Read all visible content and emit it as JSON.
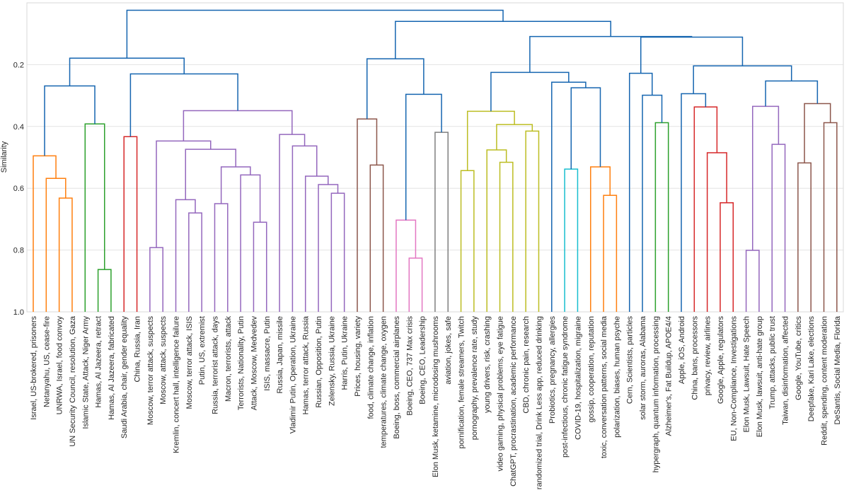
{
  "chart_data": {
    "type": "dendrogram",
    "ylabel": "Similarity",
    "ylim": [
      0,
      1.0
    ],
    "y_inverted": true,
    "yticks": [
      0.2,
      0.4,
      0.6,
      0.8,
      1.0
    ],
    "ytick_labels": [
      "0.2",
      "0.4",
      "0.6",
      "0.8",
      "1.0"
    ],
    "grid": "horizontal",
    "colors": {
      "above": "#1565b0",
      "orange": "#ff7f0e",
      "green": "#2ca02c",
      "red": "#d62728",
      "purple": "#9467bd",
      "brown": "#8c564b",
      "pink": "#e377c2",
      "gray": "#7f7f7f",
      "olive": "#bcbd22",
      "cyan": "#17becf"
    },
    "leaves": [
      "Israel, US-brokered, prisoners",
      "Netanyahu, US, cease-fire",
      "UNRWA, Israel, food convoy",
      "UN Security Council, resolution, Gaza",
      "Islamic State, Attack, Niger Army",
      "Hamas, Al Jazeera, retract",
      "Hamas, Al Jazeera, fabricated",
      "Saudi Arabia, chair, gender equality",
      "China, Russia, Iran",
      "Moscow, terror attack, suspects",
      "Moscow, attack, suspects",
      "Kremlin, concert hall, intelligence failure",
      "Moscow, terror attack, ISIS",
      "Putin, US, extremist",
      "Russia, terrorist attack, days",
      "Macron, terrorists, attack",
      "Terrorists, Nationality, Putin",
      "Attack, Moscow, Medvedev",
      "ISIS, massacre, Putin",
      "Russia, Japan, missile",
      "Vladimir Putin, Operation, Ukraine",
      "Hamas, terror attack, Russia",
      "Russian, Opposition, Putin",
      "Zelensky, Russia, Ukraine",
      "Harris, Putin, Ukraine",
      "Prices, housing, variety",
      "food, climate change, inflation",
      "temperatures, climate change, oxygen",
      "Boeing, boss, commercial airplanes",
      "Boeing, CEO, 737 Max crisis",
      "Boeing, CEO, Leadership",
      "Elon Musk, ketamine, microdosing mushrooms",
      "aviation, jokes, safe",
      "pornification, female streamers, Twitch",
      "pornography, prevalence rate, study",
      "young drivers, risk, crashing",
      "video gaming, physical problems, eye fatigue",
      "ChatGPT, procrastination, academic performance",
      "CBD, chronic pain, research",
      "randomized trial, Drink Less app, reduced drinking",
      "Probiotics, pregnancy, allergies",
      "post-infectious, chronic fatigue syndrome",
      "COVID-19, hospitalization, migraine",
      "gossip, cooperation, reputation",
      "toxic, conversation patterns, social media",
      "polarization, biases, human psyche",
      "Cern, Scientists, particles",
      "solar storm, auroras, Alabama",
      "hypergraph, quantum information, processing",
      "Alzheimer's, Fat Buildup, APOE4/4",
      "Apple, iOS, Android",
      "China, bans, processors",
      "privacy, review, airlines",
      "Google, Apple, regulators",
      "EU, Non-Compliance, Investigations",
      "Elon Musk, Lawsuit, Hate Speech",
      "Elon Musk, lawsuit, anti-hate group",
      "Trump, attacks, public trust",
      "Taiwan, disinformation, affected",
      "Google, YouTube, critics",
      "Deepfake, Kari Lake, elections",
      "Reddit, spending, content moderation",
      "DeSantis, Social Media, Florida"
    ],
    "tree": {
      "h": 0.024,
      "c": [
        {
          "h": 0.179,
          "c": [
            {
              "h": 0.269,
              "c": [
                {
                  "h": 0.495,
                  "k": "orange",
                  "c": [
                    0,
                    {
                      "h": 0.568,
                      "c": [
                        1,
                        {
                          "h": 0.632,
                          "c": [
                            2,
                            3
                          ]
                        }
                      ]
                    }
                  ]
                },
                {
                  "h": 0.392,
                  "k": "green",
                  "c": [
                    4,
                    {
                      "h": 0.863,
                      "c": [
                        5,
                        6
                      ]
                    }
                  ]
                }
              ]
            },
            {
              "h": 0.23,
              "c": [
                {
                  "h": 0.433,
                  "k": "red",
                  "c": [
                    7,
                    8
                  ]
                },
                {
                  "h": 0.349,
                  "k": "purple",
                  "c": [
                    {
                      "h": 0.447,
                      "c": [
                        {
                          "h": 0.792,
                          "c": [
                            9,
                            10
                          ]
                        },
                        {
                          "h": 0.474,
                          "c": [
                            {
                              "h": 0.637,
                              "c": [
                                11,
                                {
                                  "h": 0.68,
                                  "c": [
                                    12,
                                    13
                                  ]
                                }
                              ]
                            },
                            {
                              "h": 0.531,
                              "c": [
                                {
                                  "h": 0.65,
                                  "c": [
                                    14,
                                    15
                                  ]
                                },
                                {
                                  "h": 0.557,
                                  "c": [
                                    16,
                                    {
                                      "h": 0.71,
                                      "c": [
                                        17,
                                        18
                                      ]
                                    }
                                  ]
                                }
                              ]
                            }
                          ]
                        }
                      ]
                    },
                    {
                      "h": 0.426,
                      "c": [
                        19,
                        {
                          "h": 0.463,
                          "c": [
                            20,
                            {
                              "h": 0.561,
                              "c": [
                                21,
                                {
                                  "h": 0.588,
                                  "c": [
                                    22,
                                    {
                                      "h": 0.616,
                                      "c": [
                                        23,
                                        24
                                      ]
                                    }
                                  ]
                                }
                              ]
                            }
                          ]
                        }
                      ]
                    }
                  ]
                }
              ]
            }
          ]
        },
        {
          "h": 0.06,
          "c": [
            {
              "h": 0.181,
              "c": [
                {
                  "h": 0.376,
                  "k": "brown",
                  "c": [
                    25,
                    {
                      "h": 0.525,
                      "c": [
                        26,
                        27
                      ]
                    }
                  ]
                },
                {
                  "h": 0.296,
                  "c": [
                    {
                      "h": 0.703,
                      "k": "pink",
                      "c": [
                        28,
                        {
                          "h": 0.826,
                          "c": [
                            29,
                            30
                          ]
                        }
                      ]
                    },
                    {
                      "h": 0.419,
                      "k": "gray",
                      "c": [
                        31,
                        32
                      ]
                    }
                  ]
                }
              ]
            },
            {
              "h": 0.109,
              "c": [
                {
                  "h": 0.225,
                  "c": [
                    {
                      "h": 0.351,
                      "k": "olive",
                      "c": [
                        {
                          "h": 0.543,
                          "c": [
                            33,
                            34
                          ]
                        },
                        {
                          "h": 0.394,
                          "c": [
                            {
                              "h": 0.476,
                              "c": [
                                35,
                                {
                                  "h": 0.516,
                                  "c": [
                                    36,
                                    37
                                  ]
                                }
                              ]
                            },
                            {
                              "h": 0.415,
                              "c": [
                                38,
                                39
                              ]
                            }
                          ]
                        }
                      ]
                    },
                    {
                      "h": 0.257,
                      "c": [
                        40,
                        {
                          "h": 0.275,
                          "c": [
                            {
                              "h": 0.538,
                              "k": "cyan",
                              "c": [
                                41,
                                42
                              ]
                            },
                            {
                              "h": 0.531,
                              "k": "orange",
                              "c": [
                                43,
                                {
                                  "h": 0.623,
                                  "c": [
                                    44,
                                    45
                                  ]
                                }
                              ]
                            }
                          ]
                        }
                      ]
                    }
                  ]
                },
                {
                  "h": 0.111,
                  "c": [
                    {
                      "h": 0.228,
                      "c": [
                        46,
                        {
                          "h": 0.299,
                          "c": [
                            47,
                            {
                              "h": 0.388,
                              "k": "green",
                              "c": [
                                48,
                                49
                              ]
                            }
                          ]
                        }
                      ]
                    },
                    {
                      "h": 0.204,
                      "c": [
                        {
                          "h": 0.294,
                          "c": [
                            50,
                            {
                              "h": 0.337,
                              "k": "red",
                              "c": [
                                51,
                                {
                                  "h": 0.485,
                                  "c": [
                                    52,
                                    {
                                      "h": 0.647,
                                      "c": [
                                        53,
                                        54
                                      ]
                                    }
                                  ]
                                }
                              ]
                            }
                          ]
                        },
                        {
                          "h": 0.253,
                          "c": [
                            {
                              "h": 0.335,
                              "k": "purple",
                              "c": [
                                {
                                  "h": 0.801,
                                  "c": [
                                    55,
                                    56
                                  ]
                                },
                                {
                                  "h": 0.458,
                                  "c": [
                                    57,
                                    58
                                  ]
                                }
                              ]
                            },
                            {
                              "h": 0.326,
                              "k": "brown",
                              "c": [
                                {
                                  "h": 0.518,
                                  "c": [
                                    59,
                                    60
                                  ]
                                },
                                {
                                  "h": 0.388,
                                  "c": [
                                    61,
                                    62
                                  ]
                                }
                              ]
                            }
                          ]
                        }
                      ]
                    }
                  ]
                }
              ]
            }
          ]
        }
      ]
    }
  }
}
